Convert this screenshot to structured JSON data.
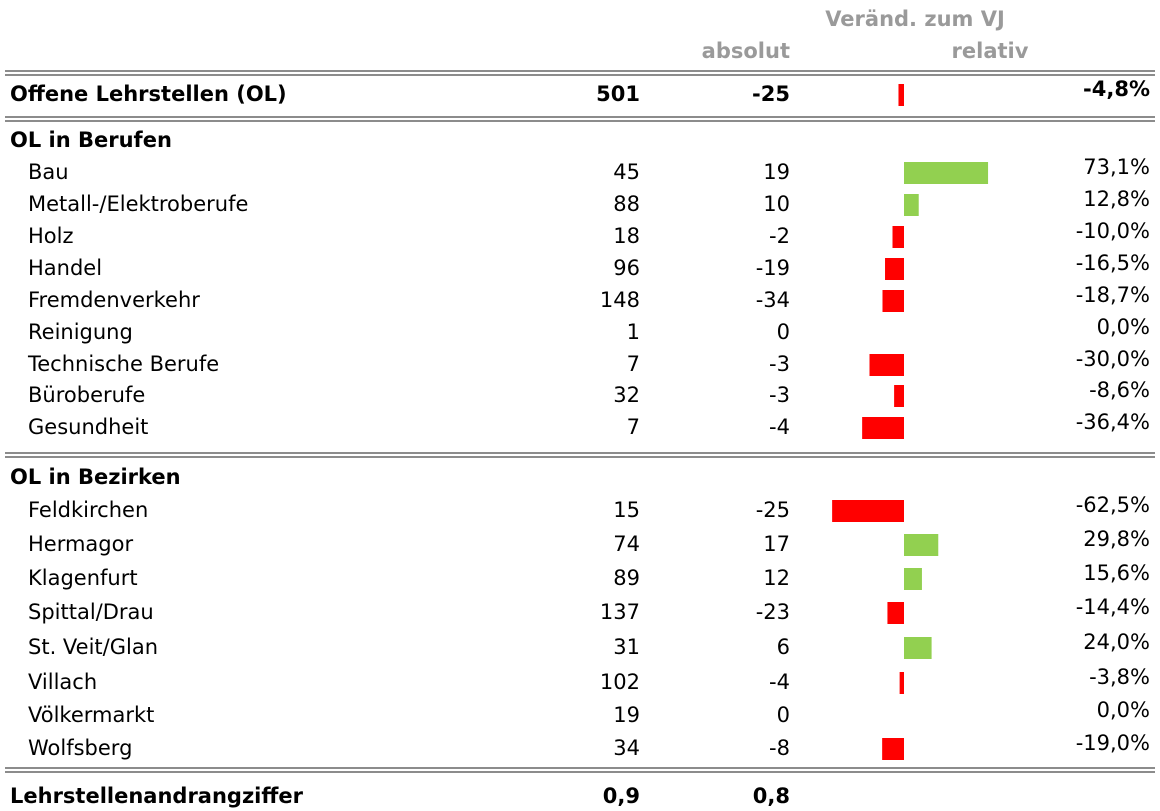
{
  "header": {
    "group": "Veränd. zum VJ",
    "absolut": "absolut",
    "relativ": "relativ"
  },
  "colors": {
    "positive": "#92d050",
    "negative": "#ff0000"
  },
  "total": {
    "label": "Offene Lehrstellen (OL)",
    "value": 501,
    "absolut": -25,
    "relative": -4.8,
    "relative_label": "-4,8%"
  },
  "sections": [
    {
      "title": "OL in Berufen",
      "rows": [
        {
          "label": "Bau",
          "value": 45,
          "absolut": 19,
          "relative": 73.1,
          "relative_label": "73,1%"
        },
        {
          "label": "Metall-/Elektroberufe",
          "value": 88,
          "absolut": 10,
          "relative": 12.8,
          "relative_label": "12,8%"
        },
        {
          "label": "Holz",
          "value": 18,
          "absolut": -2,
          "relative": -10.0,
          "relative_label": "-10,0%"
        },
        {
          "label": "Handel",
          "value": 96,
          "absolut": -19,
          "relative": -16.5,
          "relative_label": "-16,5%"
        },
        {
          "label": "Fremdenverkehr",
          "value": 148,
          "absolut": -34,
          "relative": -18.7,
          "relative_label": "-18,7%"
        },
        {
          "label": "Reinigung",
          "value": 1,
          "absolut": 0,
          "relative": 0,
          "relative_label": "0,0%"
        },
        {
          "label": "Technische Berufe",
          "value": 7,
          "absolut": -3,
          "relative": -30.0,
          "relative_label": "-30,0%"
        },
        {
          "label": "Büroberufe",
          "value": 32,
          "absolut": -3,
          "relative": -8.6,
          "relative_label": "-8,6%"
        },
        {
          "label": "Gesundheit",
          "value": 7,
          "absolut": -4,
          "relative": -36.4,
          "relative_label": "-36,4%"
        }
      ]
    },
    {
      "title": "OL in Bezirken",
      "rows": [
        {
          "label": "Feldkirchen",
          "value": 15,
          "absolut": -25,
          "relative": -62.5,
          "relative_label": "-62,5%"
        },
        {
          "label": "Hermagor",
          "value": 74,
          "absolut": 17,
          "relative": 29.8,
          "relative_label": "29,8%"
        },
        {
          "label": "Klagenfurt",
          "value": 89,
          "absolut": 12,
          "relative": 15.6,
          "relative_label": "15,6%"
        },
        {
          "label": "Spittal/Drau",
          "value": 137,
          "absolut": -23,
          "relative": -14.4,
          "relative_label": "-14,4%"
        },
        {
          "label": "St. Veit/Glan",
          "value": 31,
          "absolut": 6,
          "relative": 24.0,
          "relative_label": "24,0%"
        },
        {
          "label": "Villach",
          "value": 102,
          "absolut": -4,
          "relative": -3.8,
          "relative_label": "-3,8%"
        },
        {
          "label": "Völkermarkt",
          "value": 19,
          "absolut": 0,
          "relative": 0,
          "relative_label": "0,0%"
        },
        {
          "label": "Wolfsberg",
          "value": 34,
          "absolut": -8,
          "relative": -19.0,
          "relative_label": "-19,0%"
        }
      ]
    }
  ],
  "footer": {
    "label": "Lehrstellenandrangziffer",
    "value": "0,9",
    "absolut": "0,8"
  }
}
